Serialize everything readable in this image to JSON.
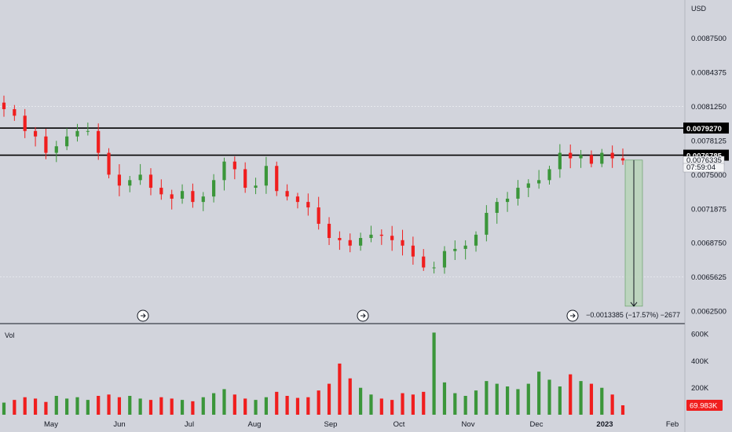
{
  "currency": "USD",
  "volume_label": "Vol",
  "measure_label": "−0.0013385 (−17.57%) −2677",
  "price_badges": [
    {
      "value": "0.0079270",
      "style": "dark"
    },
    {
      "value": "0.0076785",
      "style": "dark"
    },
    {
      "value": "0.0076335",
      "style": "light"
    },
    {
      "value": "07:59:04",
      "style": "light"
    }
  ],
  "volume_badge": "69.983K",
  "colors": {
    "up": "#3b963a",
    "down": "#f01e1e",
    "line": "#000000",
    "measure_fill": "#b9d3b9",
    "background": "#d2d4dc"
  },
  "icons": [
    "arrow-circle-icon",
    "arrow-circle-icon",
    "arrow-circle-icon"
  ],
  "chart_data": {
    "type": "candlestick",
    "x_ticks": [
      "May",
      "Jun",
      "Jul",
      "Aug",
      "Sep",
      "Oct",
      "Nov",
      "Dec",
      "2023",
      "Feb"
    ],
    "y_ticks": [
      "0.0087500",
      "0.0084375",
      "0.0081250",
      "0.0078125",
      "0.0075000",
      "0.0071875",
      "0.0068750",
      "0.0065625",
      "0.0062500"
    ],
    "ylim": [
      0.00615,
      0.0091
    ],
    "horizontal_levels": [
      0.007927,
      0.0076785
    ],
    "measure": {
      "from": 0.0076335,
      "to": 0.006295,
      "change": "−0.0013385",
      "percent": "−17.57%",
      "bars": "−2677"
    },
    "volume_ticks": [
      "600K",
      "400K",
      "200K"
    ],
    "volume_ylim": [
      0,
      630
    ],
    "close": [
      0.0081,
      0.00804,
      0.0079,
      0.00785,
      0.0077,
      0.00776,
      0.00785,
      0.0079,
      0.0079,
      0.0077,
      0.0075,
      0.0074,
      0.00745,
      0.0075,
      0.00738,
      0.00732,
      0.00728,
      0.00735,
      0.00725,
      0.0073,
      0.00745,
      0.00762,
      0.00755,
      0.00738,
      0.0074,
      0.00758,
      0.00735,
      0.0073,
      0.00725,
      0.0072,
      0.00705,
      0.00692,
      0.0069,
      0.00685,
      0.00692,
      0.00695,
      0.00694,
      0.0069,
      0.00685,
      0.00675,
      0.00665,
      0.00665,
      0.0068,
      0.00682,
      0.00685,
      0.00695,
      0.00715,
      0.00725,
      0.00728,
      0.00738,
      0.00742,
      0.00745,
      0.00755,
      0.0077,
      0.00765,
      0.00768,
      0.0076,
      0.0077,
      0.00765,
      0.00763
    ],
    "volume": [
      90,
      110,
      130,
      120,
      95,
      140,
      120,
      130,
      110,
      140,
      150,
      130,
      140,
      120,
      110,
      130,
      120,
      110,
      100,
      130,
      160,
      190,
      150,
      120,
      110,
      130,
      170,
      140,
      125,
      130,
      180,
      230,
      380,
      270,
      200,
      150,
      120,
      110,
      160,
      150,
      170,
      610,
      240,
      160,
      140,
      180,
      250,
      230,
      210,
      190,
      230,
      320,
      260,
      210,
      300,
      250,
      230,
      200,
      150,
      70
    ]
  }
}
